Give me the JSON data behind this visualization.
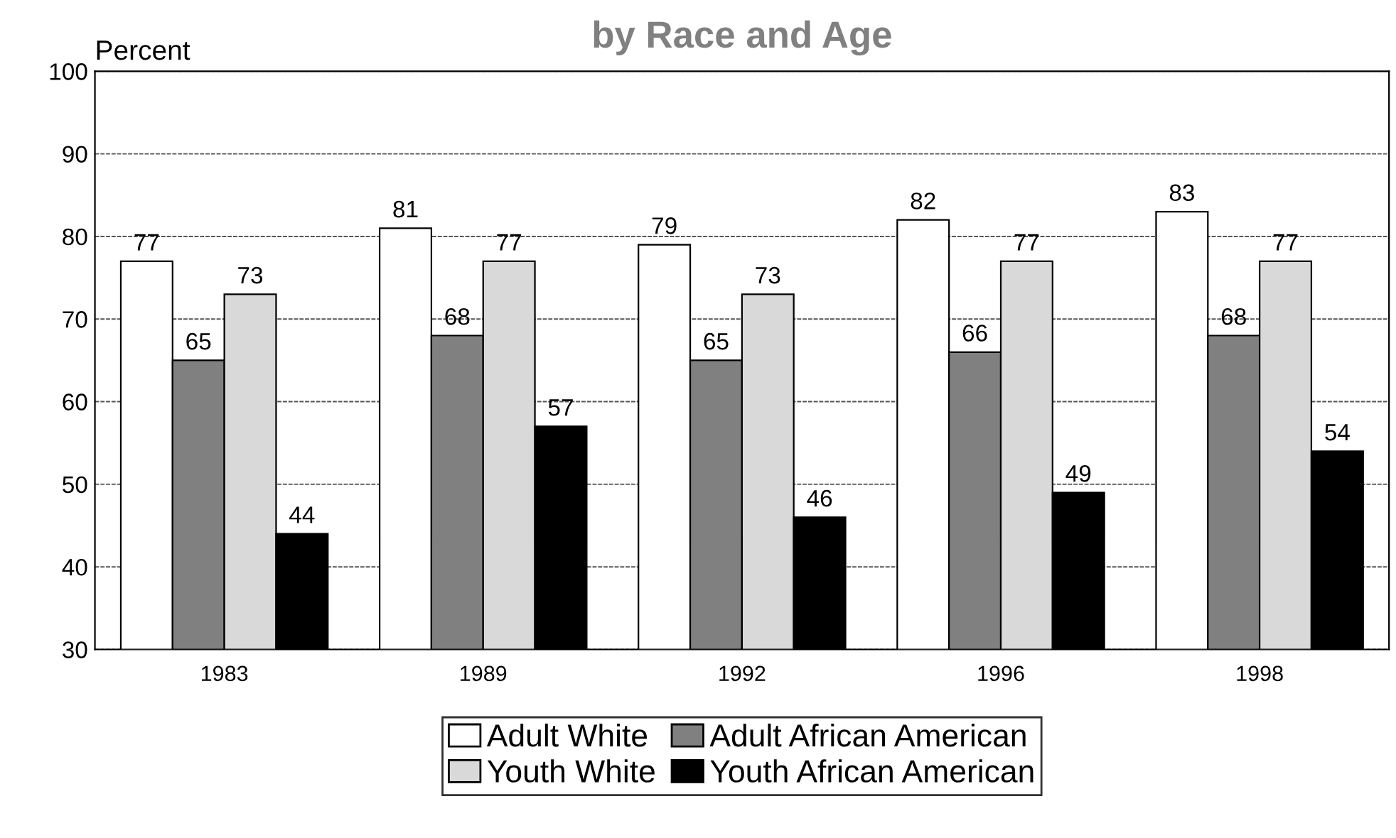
{
  "chart_data": {
    "type": "bar",
    "title": "by Race and Age",
    "ylabel": "Percent",
    "categories": [
      "1983",
      "1989",
      "1992",
      "1996",
      "1998"
    ],
    "series": [
      {
        "name": "Adult White",
        "color": "#ffffff",
        "values": [
          77,
          81,
          79,
          82,
          83
        ]
      },
      {
        "name": "Adult African American",
        "color": "#808080",
        "values": [
          65,
          68,
          65,
          66,
          68
        ]
      },
      {
        "name": "Youth White",
        "color": "#d9d9d9",
        "values": [
          73,
          77,
          73,
          77,
          77
        ]
      },
      {
        "name": "Youth African American",
        "color": "#000000",
        "values": [
          44,
          57,
          46,
          49,
          54
        ]
      }
    ],
    "ylim": [
      30,
      100
    ],
    "yticks": [
      30,
      40,
      50,
      60,
      70,
      80,
      90,
      100
    ],
    "grid": "y",
    "legend": "bottom",
    "data_labels": true
  }
}
